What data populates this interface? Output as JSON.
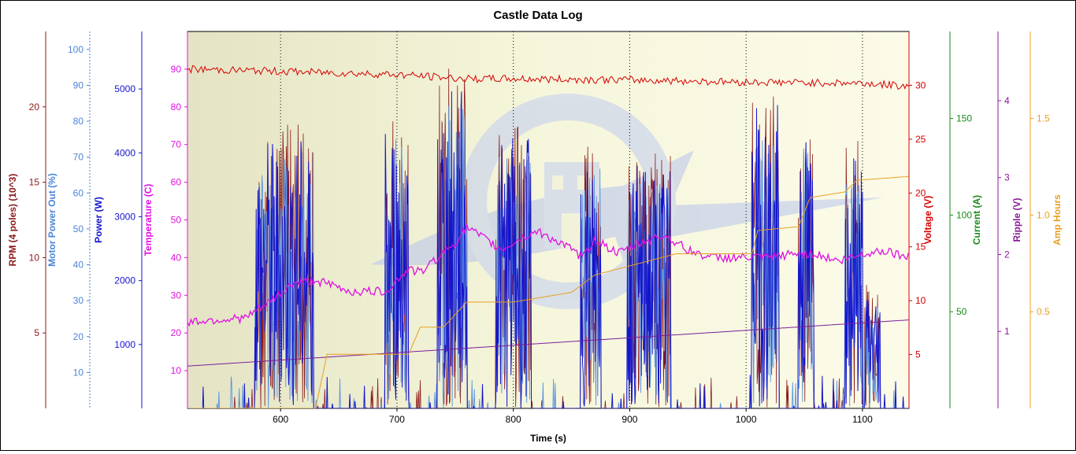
{
  "chart_data": {
    "type": "line",
    "title": "Castle Data Log",
    "xlabel": "Time (s)",
    "xlim": [
      520,
      1140
    ],
    "xticks": [
      600,
      700,
      800,
      900,
      1000,
      1100
    ],
    "grid": "vertical dotted lines",
    "axes": [
      {
        "id": "rpm",
        "label": "RPM (4 poles) (10^3)",
        "side": "left",
        "color": "#8b1a1a",
        "ylim": [
          0,
          25
        ],
        "ticks": [
          5,
          10,
          15,
          20
        ]
      },
      {
        "id": "mpo",
        "label": "Motor Power Out (%)",
        "side": "left",
        "color": "#4a86d6",
        "ylim": [
          0,
          105
        ],
        "ticks": [
          10,
          20,
          30,
          40,
          50,
          60,
          70,
          80,
          90,
          100
        ]
      },
      {
        "id": "power",
        "label": "Power (W)",
        "side": "left",
        "color": "#1515cc",
        "ylim": [
          0,
          5900
        ],
        "ticks": [
          1000,
          2000,
          3000,
          4000,
          5000
        ]
      },
      {
        "id": "temp",
        "label": "Temperature (C)",
        "side": "left",
        "color": "#e010e0",
        "ylim": [
          0,
          100
        ],
        "ticks": [
          10,
          20,
          30,
          40,
          50,
          60,
          70,
          80,
          90
        ]
      },
      {
        "id": "volt",
        "label": "Voltage (V)",
        "side": "right",
        "color": "#d40000",
        "ylim": [
          0,
          35
        ],
        "ticks": [
          5,
          10,
          15,
          20,
          25,
          30
        ]
      },
      {
        "id": "curr",
        "label": "Current (A)",
        "side": "right",
        "color": "#1a8a1a",
        "ylim": [
          0,
          195
        ],
        "ticks": [
          50,
          100,
          150
        ]
      },
      {
        "id": "rip",
        "label": "Ripple (V)",
        "side": "right",
        "color": "#8a1a9a",
        "ylim": [
          0,
          4.9
        ],
        "ticks": [
          1,
          2,
          3,
          4
        ]
      },
      {
        "id": "amph",
        "label": "Amp Hours",
        "side": "right",
        "color": "#e8a020",
        "ylim": [
          0,
          1.95
        ],
        "ticks": [
          0.5,
          1.0,
          1.5
        ]
      }
    ],
    "bursts": [
      [
        578,
        628,
        0.8
      ],
      [
        690,
        710,
        0.85
      ],
      [
        735,
        760,
        0.95
      ],
      [
        785,
        815,
        0.8
      ],
      [
        858,
        875,
        0.75
      ],
      [
        898,
        935,
        0.72
      ],
      [
        1005,
        1028,
        0.9
      ],
      [
        1045,
        1058,
        0.82
      ],
      [
        1085,
        1100,
        0.78
      ],
      [
        1102,
        1115,
        0.35
      ]
    ],
    "series": [
      {
        "name": "Voltage",
        "axis": "volt",
        "x": [
          520,
          600,
          700,
          760,
          800,
          900,
          1000,
          1100,
          1140
        ],
        "values": [
          31.5,
          31.3,
          31.0,
          30.6,
          30.6,
          30.5,
          30.3,
          30.2,
          29.9
        ]
      },
      {
        "name": "Temperature",
        "axis": "temp",
        "x": [
          520,
          570,
          590,
          610,
          630,
          660,
          690,
          710,
          720,
          750,
          760,
          780,
          790,
          800,
          820,
          840,
          860,
          870,
          890,
          910,
          930,
          950,
          970,
          1000,
          1020,
          1040,
          1060,
          1080,
          1100,
          1120,
          1140
        ],
        "values": [
          23,
          24,
          28,
          33,
          34,
          31,
          31,
          37,
          36,
          44,
          48,
          44,
          42,
          44,
          47,
          44,
          40,
          45,
          41,
          44,
          46,
          42,
          40,
          40,
          40,
          41,
          41,
          39,
          41,
          42,
          40
        ]
      },
      {
        "name": "Ripple",
        "axis": "rip",
        "x": [
          520,
          1140
        ],
        "values": [
          0.55,
          1.15
        ]
      },
      {
        "name": "Amp Hours",
        "axis": "amph",
        "x": [
          520,
          630,
          640,
          710,
          720,
          740,
          760,
          800,
          850,
          870,
          940,
          1005,
          1010,
          1045,
          1055,
          1085,
          1095,
          1140
        ],
        "values": [
          0.0,
          0.0,
          0.28,
          0.28,
          0.42,
          0.42,
          0.55,
          0.55,
          0.6,
          0.69,
          0.8,
          0.8,
          0.92,
          0.94,
          1.09,
          1.12,
          1.18,
          1.2
        ]
      }
    ]
  }
}
